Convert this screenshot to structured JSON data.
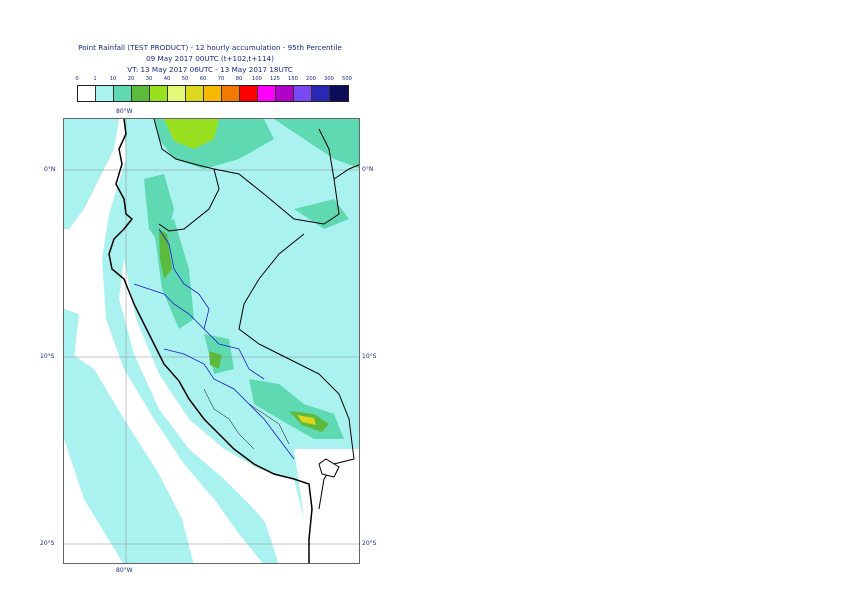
{
  "title": {
    "line1": "Point Rainfall (TEST PRODUCT) - 12 hourly accumulation - 95th Percentile",
    "line2": "09 May 2017 00UTC (t+102,t+114)",
    "line3": "VT: 13 May 2017 06UTC - 13 May 2017 18UTC"
  },
  "legend": {
    "ticks": [
      "0",
      "1",
      "10",
      "20",
      "30",
      "40",
      "50",
      "60",
      "70",
      "80",
      "100",
      "125",
      "150",
      "200",
      "300",
      "500"
    ],
    "colors": [
      "#ffffff",
      "#aaf2f0",
      "#5fd9b2",
      "#5cbb3c",
      "#99e021",
      "#e4f87a",
      "#dbd81e",
      "#f6b800",
      "#f27a00",
      "#ff0000",
      "#ff00ff",
      "#b000c8",
      "#7a48f0",
      "#2828b4",
      "#0c0c58"
    ]
  },
  "map": {
    "lon_labels": {
      "top": "80°W",
      "bottom": "80°W"
    },
    "lat_labels": [
      {
        "left": "0°N",
        "right": "0°N"
      },
      {
        "left": "10°S",
        "right": "10°S"
      },
      {
        "left": "20°S",
        "right": "20°S"
      }
    ],
    "region": "Peru",
    "colors": {
      "light": "#aaf2f0",
      "medium": "#5fd9b2",
      "green": "#5cbb3c",
      "lime": "#99e021",
      "yellow": "#dbd81e",
      "boundary": "#000000",
      "regions": "#1a1ac8"
    }
  }
}
